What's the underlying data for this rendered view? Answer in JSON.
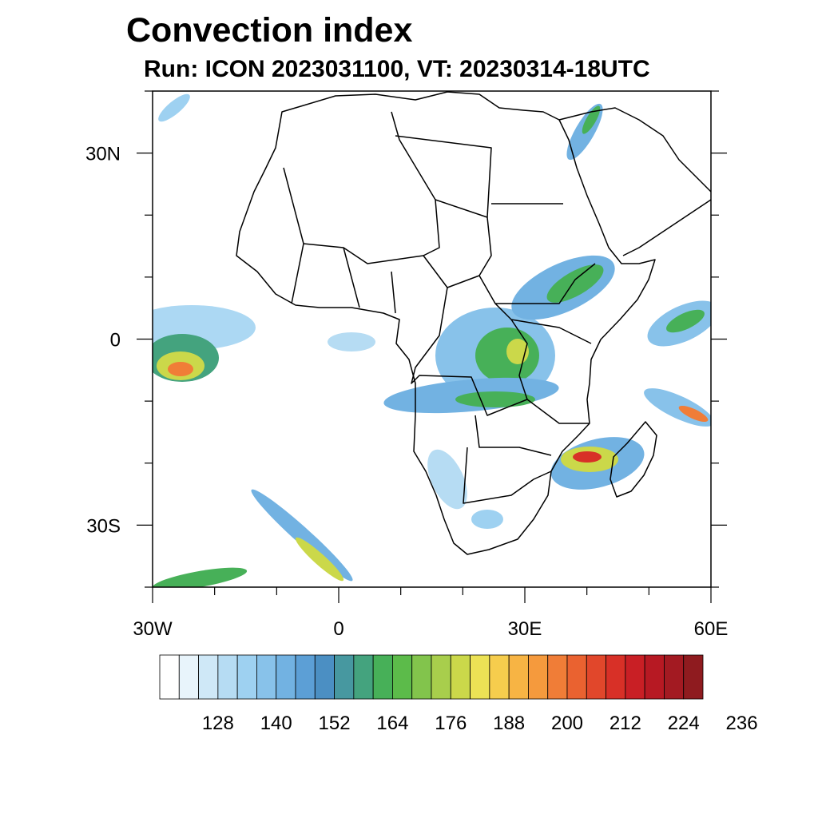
{
  "title": "Convection index",
  "subtitle": "Run: ICON 2023031100,  VT: 20230314-18UTC",
  "map": {
    "lon_range": [
      -30,
      60
    ],
    "lat_range": [
      -40,
      40
    ],
    "x_ticks": [
      {
        "lon": -30,
        "label": "30W"
      },
      {
        "lon": 0,
        "label": "0"
      },
      {
        "lon": 30,
        "label": "30E"
      },
      {
        "lon": 60,
        "label": "60E"
      }
    ],
    "y_ticks": [
      {
        "lat": 30,
        "label": "30N"
      },
      {
        "lat": 0,
        "label": "0"
      },
      {
        "lat": -30,
        "label": "30S"
      }
    ],
    "region": "Africa"
  },
  "colorbar": {
    "colors": [
      "#ffffff",
      "#e8f4fb",
      "#cfe8f7",
      "#b6dcf3",
      "#9ed1f1",
      "#88c2ea",
      "#72b2e2",
      "#5c9fd6",
      "#4b8fc3",
      "#4798a0",
      "#44a37e",
      "#47b058",
      "#5cbb4a",
      "#82c44c",
      "#a8ce4c",
      "#cbd84a",
      "#ece255",
      "#f6cd4d",
      "#f7b444",
      "#f59a3d",
      "#f07d37",
      "#ea6230",
      "#e1472b",
      "#d83027",
      "#c91f25",
      "#b71923",
      "#a31a22",
      "#8f1b1f"
    ],
    "labels": [
      "128",
      "140",
      "152",
      "164",
      "176",
      "188",
      "200",
      "212",
      "224",
      "236"
    ]
  }
}
